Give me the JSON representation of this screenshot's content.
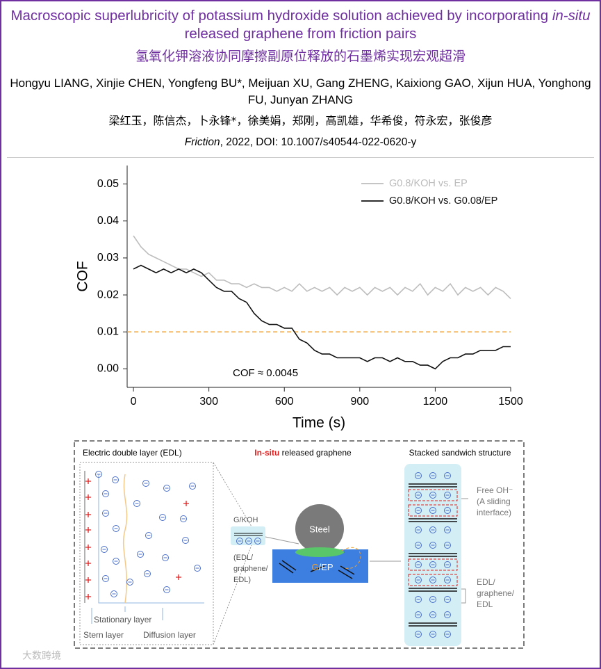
{
  "header": {
    "title_parts": [
      "Macroscopic superlubricity of potassium hydroxide solution achieved by incorporating ",
      "in-situ",
      " released graphene from friction pairs"
    ],
    "title_cn": "氢氧化钾溶液协同摩擦副原位释放的石墨烯实现宏观超滑",
    "authors": "Hongyu LIANG, Xinjie CHEN, Yongfeng BU*, Meijuan XU, Gang ZHENG, Kaixiong GAO, Xijun HUA, Yonghong FU, Junyan ZHANG",
    "authors_cn": "梁红玉，陈信杰，卜永锋*，徐美娟，郑刚，高凯雄，华希俊，符永宏，张俊彦",
    "citation_parts": [
      "Friction",
      ", 2022, DOI: 10.1007/s40544-022-0620-y"
    ]
  },
  "chart_data": {
    "type": "line",
    "x_label": "Time (s)",
    "y_label": "COF",
    "annotation": "COF ≈ 0.0045",
    "x": [
      0,
      30,
      60,
      90,
      120,
      150,
      180,
      210,
      240,
      270,
      300,
      330,
      360,
      390,
      420,
      450,
      480,
      510,
      540,
      570,
      600,
      630,
      660,
      690,
      720,
      750,
      780,
      810,
      840,
      870,
      900,
      930,
      960,
      990,
      1020,
      1050,
      1080,
      1110,
      1140,
      1170,
      1200,
      1230,
      1260,
      1290,
      1320,
      1350,
      1380,
      1410,
      1440,
      1470,
      1500
    ],
    "series": [
      {
        "name": "G0.8/KOH vs. EP",
        "color": "#bdbdbd",
        "values": [
          0.036,
          0.033,
          0.031,
          0.03,
          0.029,
          0.028,
          0.027,
          0.027,
          0.026,
          0.025,
          0.026,
          0.024,
          0.024,
          0.023,
          0.023,
          0.022,
          0.023,
          0.022,
          0.022,
          0.021,
          0.022,
          0.021,
          0.023,
          0.021,
          0.022,
          0.021,
          0.022,
          0.02,
          0.022,
          0.021,
          0.022,
          0.02,
          0.022,
          0.021,
          0.022,
          0.02,
          0.022,
          0.021,
          0.023,
          0.02,
          0.022,
          0.021,
          0.023,
          0.02,
          0.022,
          0.021,
          0.022,
          0.02,
          0.022,
          0.021,
          0.019
        ]
      },
      {
        "name": "G0.8/KOH vs. G0.08/EP",
        "color": "#111111",
        "values": [
          0.027,
          0.028,
          0.027,
          0.026,
          0.027,
          0.026,
          0.027,
          0.026,
          0.027,
          0.026,
          0.024,
          0.022,
          0.021,
          0.021,
          0.019,
          0.018,
          0.015,
          0.013,
          0.012,
          0.012,
          0.011,
          0.011,
          0.008,
          0.007,
          0.005,
          0.004,
          0.004,
          0.003,
          0.003,
          0.003,
          0.003,
          0.002,
          0.003,
          0.003,
          0.002,
          0.003,
          0.002,
          0.002,
          0.001,
          0.001,
          0.0,
          0.002,
          0.003,
          0.003,
          0.004,
          0.004,
          0.005,
          0.005,
          0.005,
          0.006,
          0.006
        ]
      }
    ],
    "hline": {
      "value": 0.01,
      "color": "#f0a030"
    },
    "xlim": [
      -25,
      1500
    ],
    "xticks": [
      0,
      300,
      600,
      900,
      1200,
      1500
    ],
    "ylim": [
      -0.005,
      0.055
    ],
    "yticks": [
      {
        "value": 0,
        "label": "0.00"
      },
      0.01,
      0.02,
      0.03,
      0.04,
      0.05
    ],
    "legend": "upper right",
    "grid": false
  },
  "diagram": {
    "edl_title": "Electric double layer (EDL)",
    "middle_title_parts": [
      "In-situ",
      " released graphene"
    ],
    "right_title": "Stacked sandwich structure",
    "stationary": "Stationary layer",
    "stern": "Stern layer",
    "diffusion": "Diffusion layer",
    "gkoh": "G/KOH",
    "edl_lines": [
      "(EDL/",
      "graphene/",
      "EDL)"
    ],
    "steel": "Steel",
    "gep_parts": [
      "G",
      "/EP"
    ],
    "free_oh": [
      "Free OH⁻",
      "(A sliding",
      "interface)"
    ],
    "edl_right": [
      "EDL/",
      "graphene/",
      "EDL"
    ],
    "watermark": "大数跨境"
  }
}
